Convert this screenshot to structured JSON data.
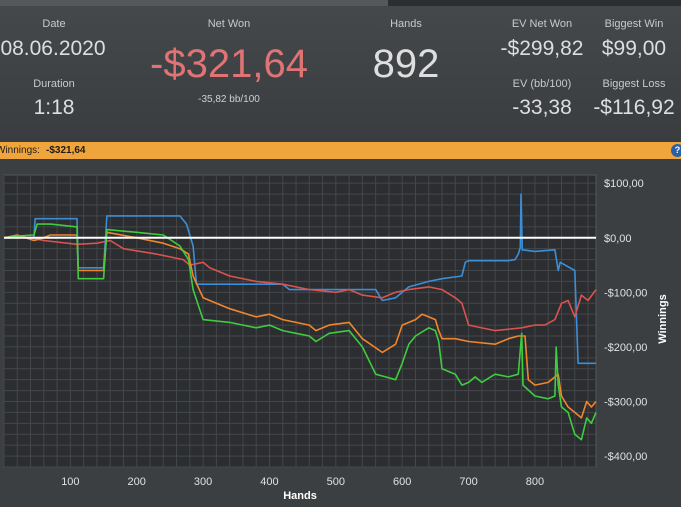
{
  "stats": {
    "date_label": "Date",
    "date_value": "08.06.2020",
    "duration_label": "Duration",
    "duration_value": "1:18",
    "net_won_label": "Net Won",
    "net_won_value": "-$321,64",
    "bb_per_100": "-35,82 bb/100",
    "hands_label": "Hands",
    "hands_value": "892",
    "ev_net_won_label": "EV Net Won",
    "ev_net_won_value": "-$299,82",
    "ev_bb_label": "EV (bb/100)",
    "ev_bb_value": "-33,38",
    "biggest_win_label": "Biggest Win",
    "biggest_win_value": "$99,00",
    "biggest_loss_label": "Biggest Loss",
    "biggest_loss_value": "-$116,92"
  },
  "winnings_bar": {
    "label": "Winnings:",
    "value": "-$321,64",
    "help_icon": "question-icon",
    "help_glyph": "?"
  },
  "colors": {
    "net_won_negative": "#e07474",
    "bar": "#f0a53c",
    "series_blue": "#3b8fd9",
    "series_red": "#d9534f",
    "series_orange": "#f0862c",
    "series_green": "#3fcc3f",
    "zero_line": "#ffffff"
  },
  "chart_data": {
    "type": "line",
    "xlabel": "Hands",
    "ylabel": "Winnings",
    "xlim": [
      0,
      892
    ],
    "ylim": [
      -420,
      115
    ],
    "x_ticks": [
      100,
      200,
      300,
      400,
      500,
      600,
      700,
      800
    ],
    "y_ticks": [
      100,
      0,
      -100,
      -200,
      -300,
      -400
    ],
    "y_tick_labels": [
      "$100,00",
      "$0,00",
      "-$100,00",
      "-$200,00",
      "-$300,00",
      "-$400,00"
    ],
    "grid": true,
    "legend": "none",
    "series": [
      {
        "color": "#3b8fd9",
        "points": [
          [
            0,
            0
          ],
          [
            45,
            0
          ],
          [
            47,
            35
          ],
          [
            110,
            35
          ],
          [
            112,
            -55
          ],
          [
            150,
            -55
          ],
          [
            155,
            40
          ],
          [
            265,
            40
          ],
          [
            275,
            25
          ],
          [
            280,
            5
          ],
          [
            285,
            -15
          ],
          [
            290,
            -85
          ],
          [
            420,
            -85
          ],
          [
            430,
            -95
          ],
          [
            560,
            -95
          ],
          [
            570,
            -115
          ],
          [
            590,
            -110
          ],
          [
            610,
            -90
          ],
          [
            640,
            -80
          ],
          [
            660,
            -75
          ],
          [
            690,
            -70
          ],
          [
            695,
            -45
          ],
          [
            700,
            -42
          ],
          [
            760,
            -42
          ],
          [
            770,
            -40
          ],
          [
            775,
            -30
          ],
          [
            778,
            -18
          ],
          [
            779,
            80
          ],
          [
            781,
            -22
          ],
          [
            800,
            -25
          ],
          [
            830,
            -22
          ],
          [
            835,
            -60
          ],
          [
            838,
            -45
          ],
          [
            860,
            -60
          ],
          [
            865,
            -230
          ],
          [
            892,
            -230
          ]
        ]
      },
      {
        "color": "#d9534f",
        "points": [
          [
            0,
            0
          ],
          [
            40,
            0
          ],
          [
            60,
            -5
          ],
          [
            110,
            -12
          ],
          [
            140,
            -10
          ],
          [
            160,
            -5
          ],
          [
            180,
            -20
          ],
          [
            230,
            -30
          ],
          [
            270,
            -40
          ],
          [
            280,
            -50
          ],
          [
            300,
            -45
          ],
          [
            310,
            -55
          ],
          [
            340,
            -70
          ],
          [
            380,
            -80
          ],
          [
            420,
            -85
          ],
          [
            460,
            -95
          ],
          [
            500,
            -100
          ],
          [
            520,
            -95
          ],
          [
            540,
            -105
          ],
          [
            570,
            -110
          ],
          [
            590,
            -100
          ],
          [
            610,
            -95
          ],
          [
            640,
            -90
          ],
          [
            660,
            -95
          ],
          [
            680,
            -110
          ],
          [
            690,
            -120
          ],
          [
            700,
            -160
          ],
          [
            740,
            -170
          ],
          [
            780,
            -165
          ],
          [
            800,
            -160
          ],
          [
            815,
            -160
          ],
          [
            830,
            -150
          ],
          [
            840,
            -120
          ],
          [
            850,
            -115
          ],
          [
            860,
            -145
          ],
          [
            870,
            -105
          ],
          [
            880,
            -115
          ],
          [
            892,
            -95
          ]
        ]
      },
      {
        "color": "#f0862c",
        "points": [
          [
            0,
            0
          ],
          [
            20,
            5
          ],
          [
            45,
            -5
          ],
          [
            55,
            -2
          ],
          [
            70,
            5
          ],
          [
            110,
            5
          ],
          [
            112,
            -60
          ],
          [
            150,
            -60
          ],
          [
            155,
            10
          ],
          [
            200,
            0
          ],
          [
            240,
            -10
          ],
          [
            265,
            -20
          ],
          [
            278,
            -30
          ],
          [
            285,
            -70
          ],
          [
            300,
            -110
          ],
          [
            340,
            -130
          ],
          [
            380,
            -145
          ],
          [
            400,
            -140
          ],
          [
            420,
            -150
          ],
          [
            440,
            -155
          ],
          [
            460,
            -160
          ],
          [
            470,
            -170
          ],
          [
            490,
            -160
          ],
          [
            520,
            -155
          ],
          [
            540,
            -185
          ],
          [
            570,
            -210
          ],
          [
            590,
            -195
          ],
          [
            600,
            -160
          ],
          [
            620,
            -150
          ],
          [
            630,
            -140
          ],
          [
            640,
            -145
          ],
          [
            650,
            -150
          ],
          [
            655,
            -170
          ],
          [
            660,
            -185
          ],
          [
            680,
            -185
          ],
          [
            700,
            -190
          ],
          [
            740,
            -195
          ],
          [
            760,
            -185
          ],
          [
            775,
            -180
          ],
          [
            785,
            -180
          ],
          [
            790,
            -260
          ],
          [
            800,
            -270
          ],
          [
            820,
            -265
          ],
          [
            830,
            -255
          ],
          [
            835,
            -250
          ],
          [
            840,
            -290
          ],
          [
            850,
            -310
          ],
          [
            860,
            -320
          ],
          [
            870,
            -330
          ],
          [
            878,
            -300
          ],
          [
            885,
            -310
          ],
          [
            892,
            -300
          ]
        ]
      },
      {
        "color": "#3fcc3f",
        "points": [
          [
            0,
            0
          ],
          [
            20,
            3
          ],
          [
            45,
            5
          ],
          [
            50,
            25
          ],
          [
            70,
            25
          ],
          [
            110,
            20
          ],
          [
            112,
            -75
          ],
          [
            150,
            -75
          ],
          [
            155,
            15
          ],
          [
            200,
            10
          ],
          [
            240,
            5
          ],
          [
            265,
            -15
          ],
          [
            278,
            -40
          ],
          [
            285,
            -95
          ],
          [
            300,
            -150
          ],
          [
            340,
            -155
          ],
          [
            380,
            -165
          ],
          [
            400,
            -160
          ],
          [
            420,
            -170
          ],
          [
            440,
            -175
          ],
          [
            460,
            -180
          ],
          [
            470,
            -190
          ],
          [
            490,
            -175
          ],
          [
            520,
            -170
          ],
          [
            540,
            -200
          ],
          [
            560,
            -250
          ],
          [
            575,
            -255
          ],
          [
            590,
            -260
          ],
          [
            600,
            -230
          ],
          [
            610,
            -195
          ],
          [
            620,
            -180
          ],
          [
            640,
            -165
          ],
          [
            650,
            -170
          ],
          [
            655,
            -190
          ],
          [
            660,
            -240
          ],
          [
            680,
            -250
          ],
          [
            690,
            -270
          ],
          [
            700,
            -265
          ],
          [
            710,
            -255
          ],
          [
            720,
            -265
          ],
          [
            740,
            -250
          ],
          [
            760,
            -255
          ],
          [
            775,
            -250
          ],
          [
            780,
            -175
          ],
          [
            782,
            -270
          ],
          [
            800,
            -290
          ],
          [
            820,
            -295
          ],
          [
            830,
            -290
          ],
          [
            832,
            -200
          ],
          [
            835,
            -270
          ],
          [
            840,
            -310
          ],
          [
            850,
            -320
          ],
          [
            860,
            -360
          ],
          [
            870,
            -370
          ],
          [
            878,
            -330
          ],
          [
            885,
            -340
          ],
          [
            892,
            -320
          ]
        ]
      }
    ]
  }
}
